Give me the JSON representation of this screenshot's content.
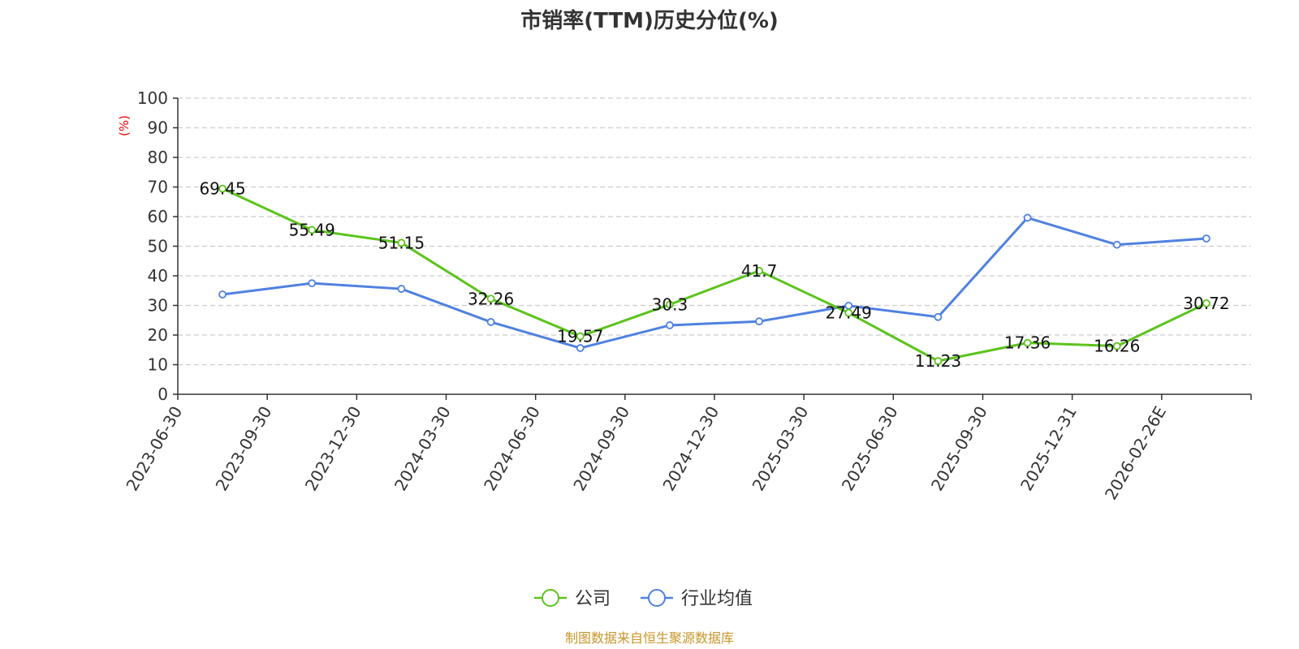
{
  "colors": {
    "company": "#5cc31c",
    "industry": "#4f81e0",
    "ylabel": "#ee0000",
    "source": "#c8962a",
    "grid": "#cccccc",
    "axis": "#333333"
  },
  "source_text": "制图数据来自恒生聚源数据库",
  "chart_data": {
    "type": "line",
    "title": "市销率(TTM)历史分位(%)",
    "ylabel": "(%)",
    "xlabel": "",
    "ylim": [
      0,
      100
    ],
    "yticks": [
      0,
      10,
      20,
      30,
      40,
      50,
      60,
      70,
      80,
      90,
      100
    ],
    "grid": true,
    "legend_position": "bottom-center",
    "categories": [
      "2023-06-30",
      "2023-09-30",
      "2023-12-30",
      "2024-03-30",
      "2024-06-30",
      "2024-09-30",
      "2024-12-30",
      "2025-03-30",
      "2025-06-30",
      "2025-09-30",
      "2025-12-31",
      "2026-02-26E"
    ],
    "series": [
      {
        "name": "公司",
        "color": "#5cc31c",
        "values": [
          69.45,
          55.49,
          51.15,
          32.26,
          19.57,
          30.3,
          41.7,
          27.49,
          11.23,
          17.36,
          16.26,
          30.72
        ],
        "labels": [
          "69.45",
          "55.49",
          "51.15",
          "32.26",
          "19.57",
          "30.3",
          "41.7",
          "27.49",
          "11.23",
          "17.36",
          "16.26",
          "30.72"
        ],
        "show_labels": true
      },
      {
        "name": "行业均值",
        "color": "#4f81e0",
        "values": [
          33.7,
          37.5,
          35.6,
          24.4,
          15.6,
          23.3,
          24.6,
          29.9,
          26.1,
          59.6,
          50.5,
          52.6
        ],
        "show_labels": false
      }
    ]
  }
}
